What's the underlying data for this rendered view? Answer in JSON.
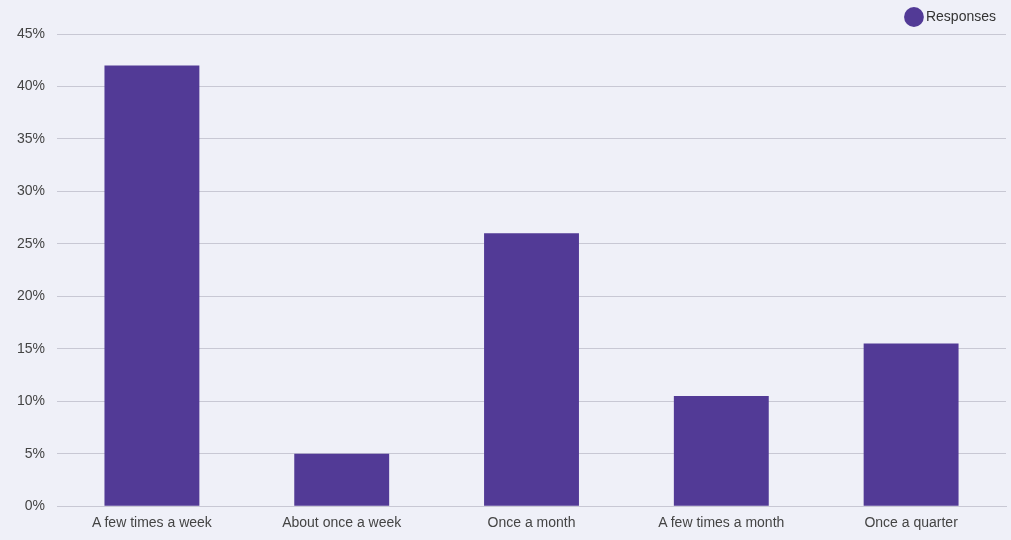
{
  "chart_data": {
    "type": "bar",
    "categories": [
      "A few times a week",
      "About once a week",
      "Once a month",
      "A few times a month",
      "Once a quarter"
    ],
    "series": [
      {
        "name": "Responses",
        "color": "#523a96",
        "values": [
          42,
          5,
          26,
          10.5,
          15.5
        ]
      }
    ],
    "ylim": [
      0,
      45
    ],
    "yticks": [
      {
        "value": 0,
        "label": "0%"
      },
      {
        "value": 5,
        "label": "5%"
      },
      {
        "value": 10,
        "label": "10%"
      },
      {
        "value": 15,
        "label": "15%"
      },
      {
        "value": 20,
        "label": "20%"
      },
      {
        "value": 25,
        "label": "25%"
      },
      {
        "value": 30,
        "label": "30%"
      },
      {
        "value": 35,
        "label": "35%"
      },
      {
        "value": 40,
        "label": "40%"
      },
      {
        "value": 45,
        "label": "45%"
      }
    ],
    "grid": "y",
    "legend": "top right"
  }
}
